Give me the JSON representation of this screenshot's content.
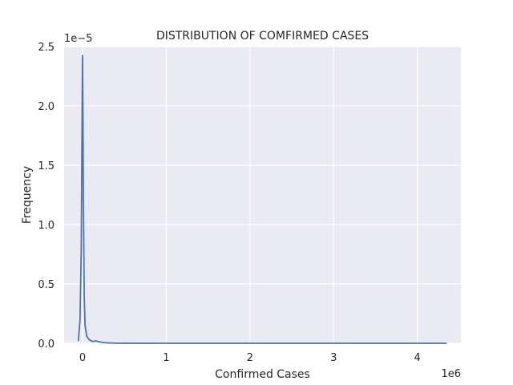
{
  "chart_data": {
    "type": "line",
    "title": "DISTRIBUTION OF COMFIRMED CASES",
    "xlabel": "Confirmed Cases",
    "ylabel": "Frequency",
    "x_scale_label": "1e6",
    "y_scale_label": "1e−5",
    "x_ticks": [
      0,
      1,
      2,
      3,
      4
    ],
    "y_ticks": [
      0.0,
      0.5,
      1.0,
      1.5,
      2.0,
      2.5
    ],
    "x_tick_labels": [
      "0",
      "1",
      "2",
      "3",
      "4"
    ],
    "y_tick_labels": [
      "0.0",
      "0.5",
      "1.0",
      "1.5",
      "2.0",
      "2.5"
    ],
    "xlim": [
      -0.22,
      4.52
    ],
    "ylim": [
      0,
      2.5
    ],
    "grid": true,
    "background_color": "#eaeaf2",
    "line_color": "#4c72b0",
    "series": [
      {
        "x": [
          -0.05,
          -0.03,
          -0.015,
          -0.005,
          0.0,
          0.005,
          0.01,
          0.02,
          0.03,
          0.05,
          0.08,
          0.12,
          0.16,
          0.2,
          0.25,
          0.3,
          0.4,
          0.6,
          1.0,
          2.0,
          3.0,
          4.0,
          4.35
        ],
        "y": [
          0.02,
          0.2,
          0.8,
          1.9,
          2.43,
          1.9,
          1.2,
          0.4,
          0.15,
          0.06,
          0.03,
          0.015,
          0.02,
          0.012,
          0.006,
          0.003,
          0.001,
          0.0004,
          0.0001,
          0.0,
          0.0,
          0.0,
          0.0
        ]
      }
    ]
  }
}
